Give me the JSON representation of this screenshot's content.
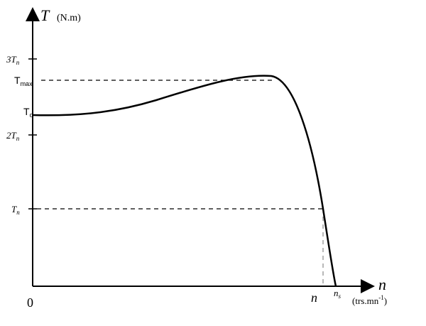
{
  "y_axis": {
    "symbol": "T",
    "unit": "(N.m)"
  },
  "x_axis": {
    "symbol": "n",
    "unit": {
      "main": "(trs.mn",
      "sup": "-1",
      "end": ")"
    }
  },
  "y_labels": [
    {
      "main": "3T",
      "sub": "n"
    },
    {
      "main": "T",
      "sub": "max"
    },
    {
      "main": "T",
      "sub": "d"
    },
    {
      "main": "2T",
      "sub": "n"
    },
    {
      "main": "T",
      "sub": "n"
    }
  ],
  "x_labels": [
    {
      "main": "0"
    },
    {
      "main": "n"
    },
    {
      "main": "n",
      "sub": "s"
    }
  ]
}
